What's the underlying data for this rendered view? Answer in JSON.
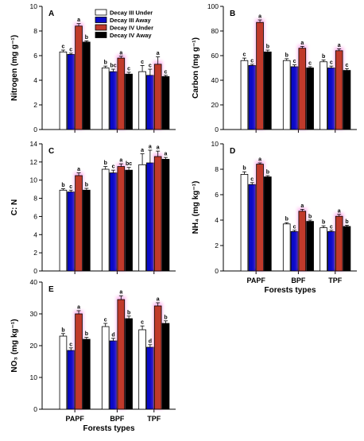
{
  "series_style": [
    {
      "fill": "#ffffff",
      "stroke": "#000000"
    },
    {
      "fill": "#0a0ac8",
      "stroke": "#000000"
    },
    {
      "fill": "#c03a2b",
      "stroke": "#000000",
      "glow": "#ff7de0"
    },
    {
      "fill": "#000000",
      "stroke": "#000000"
    }
  ],
  "chart_data": [
    {
      "panel": "A",
      "type": "bar",
      "categories": [
        "PAPF",
        "BPF",
        "TPF"
      ],
      "ylim": [
        0,
        10
      ],
      "yticks": [
        0,
        2,
        4,
        6,
        8,
        10
      ],
      "ylabel": "Nitrogen (mg g⁻¹)",
      "xlabel": "",
      "legend": "top-right",
      "series": [
        {
          "name": "Decay III Under",
          "values": [
            6.3,
            5.0,
            4.7
          ],
          "err": [
            0.15,
            0.15,
            0.5
          ],
          "sig": [
            "c",
            "b",
            "c"
          ]
        },
        {
          "name": "Decay III Away",
          "values": [
            6.1,
            4.7,
            4.4
          ],
          "err": [
            0.1,
            0.2,
            0.5
          ],
          "sig": [
            "c",
            "bc",
            "c"
          ]
        },
        {
          "name": "Decay IV Under",
          "values": [
            8.4,
            5.8,
            5.3
          ],
          "err": [
            0.2,
            0.15,
            0.6
          ],
          "sig": [
            "a",
            "a",
            "a"
          ]
        },
        {
          "name": "Decay IV Away",
          "values": [
            7.1,
            4.5,
            4.3
          ],
          "err": [
            0.1,
            0.15,
            0.1
          ],
          "sig": [
            "b",
            "c",
            "c"
          ]
        }
      ]
    },
    {
      "panel": "B",
      "type": "bar",
      "categories": [
        "PAPF",
        "BPF",
        "TPF"
      ],
      "ylim": [
        0,
        100
      ],
      "yticks": [
        0,
        20,
        40,
        60,
        80,
        100
      ],
      "ylabel": "Carbon (mg g⁻¹)",
      "xlabel": "",
      "series": [
        {
          "name": "Decay III Under",
          "values": [
            56,
            56,
            55
          ],
          "err": [
            2,
            1.5,
            1.5
          ],
          "sig": [
            "c",
            "b",
            "b"
          ]
        },
        {
          "name": "Decay III Away",
          "values": [
            52,
            51,
            50
          ],
          "err": [
            1,
            1.5,
            1.5
          ],
          "sig": [
            "c",
            "c",
            "c"
          ]
        },
        {
          "name": "Decay IV Under",
          "values": [
            87,
            66,
            64
          ],
          "err": [
            2,
            1.5,
            1.5
          ],
          "sig": [
            "a",
            "a",
            "a"
          ]
        },
        {
          "name": "Decay IV Away",
          "values": [
            63,
            50,
            48
          ],
          "err": [
            1.5,
            1,
            1.5
          ],
          "sig": [
            "b",
            "c",
            "c"
          ]
        }
      ]
    },
    {
      "panel": "C",
      "type": "bar",
      "categories": [
        "PAPF",
        "BPF",
        "TPF"
      ],
      "ylim": [
        0,
        14
      ],
      "yticks": [
        0,
        2,
        4,
        6,
        8,
        10,
        12,
        14
      ],
      "ylabel": "C: N",
      "xlabel": "",
      "series": [
        {
          "name": "Decay III Under",
          "values": [
            8.9,
            11.2,
            11.7
          ],
          "err": [
            0.15,
            0.3,
            1.2
          ],
          "sig": [
            "b",
            "b",
            "a"
          ]
        },
        {
          "name": "Decay III Away",
          "values": [
            8.7,
            10.8,
            11.9
          ],
          "err": [
            0.2,
            0.3,
            1.4
          ],
          "sig": [
            "c",
            "c",
            "a"
          ]
        },
        {
          "name": "Decay IV Under",
          "values": [
            10.5,
            11.5,
            12.6
          ],
          "err": [
            0.3,
            0.3,
            0.6
          ],
          "sig": [
            "a",
            "a",
            "a"
          ]
        },
        {
          "name": "Decay IV Away",
          "values": [
            8.9,
            11.1,
            12.3
          ],
          "err": [
            0.2,
            0.3,
            0.2
          ],
          "sig": [
            "b",
            "bc",
            "a"
          ]
        }
      ]
    },
    {
      "panel": "D",
      "type": "bar",
      "categories": [
        "PAPF",
        "BPF",
        "TPF"
      ],
      "ylim": [
        0,
        10
      ],
      "yticks": [
        0,
        2,
        4,
        6,
        8,
        10
      ],
      "ylabel": "NH₄ (mg kg⁻¹)",
      "xlabel": "Forests types",
      "series": [
        {
          "name": "Decay III Under",
          "values": [
            7.6,
            3.7,
            3.4
          ],
          "err": [
            0.2,
            0.1,
            0.15
          ],
          "sig": [
            "b",
            "b",
            "b"
          ]
        },
        {
          "name": "Decay III Away",
          "values": [
            6.8,
            3.1,
            3.1
          ],
          "err": [
            0.15,
            0.1,
            0.1
          ],
          "sig": [
            "c",
            "c",
            "c"
          ]
        },
        {
          "name": "Decay IV Under",
          "values": [
            8.4,
            4.7,
            4.3
          ],
          "err": [
            0.1,
            0.15,
            0.15
          ],
          "sig": [
            "a",
            "a",
            "a"
          ]
        },
        {
          "name": "Decay IV Away",
          "values": [
            7.4,
            3.9,
            3.5
          ],
          "err": [
            0.1,
            0.1,
            0.1
          ],
          "sig": [
            "b",
            "b",
            "b"
          ]
        }
      ]
    },
    {
      "panel": "E",
      "type": "bar",
      "categories": [
        "PAPF",
        "BPF",
        "TPF"
      ],
      "ylim": [
        0,
        40
      ],
      "yticks": [
        0,
        10,
        20,
        30,
        40
      ],
      "ylabel": "NO₃ (mg kg⁻¹)",
      "xlabel": "Forests types",
      "series": [
        {
          "name": "Decay III Under",
          "values": [
            23,
            26,
            25
          ],
          "err": [
            0.8,
            1,
            1.2
          ],
          "sig": [
            "b",
            "c",
            "c"
          ]
        },
        {
          "name": "Decay III Away",
          "values": [
            18.5,
            21.5,
            19.5
          ],
          "err": [
            0.8,
            0.8,
            0.8
          ],
          "sig": [
            "c",
            "d",
            "d"
          ]
        },
        {
          "name": "Decay IV Under",
          "values": [
            30,
            34.5,
            32.5
          ],
          "err": [
            1,
            1.2,
            1
          ],
          "sig": [
            "a",
            "a",
            "a"
          ]
        },
        {
          "name": "Decay IV Away",
          "values": [
            22,
            28.5,
            27
          ],
          "err": [
            0.6,
            0.8,
            0.8
          ],
          "sig": [
            "b",
            "b",
            "b"
          ]
        }
      ]
    }
  ]
}
